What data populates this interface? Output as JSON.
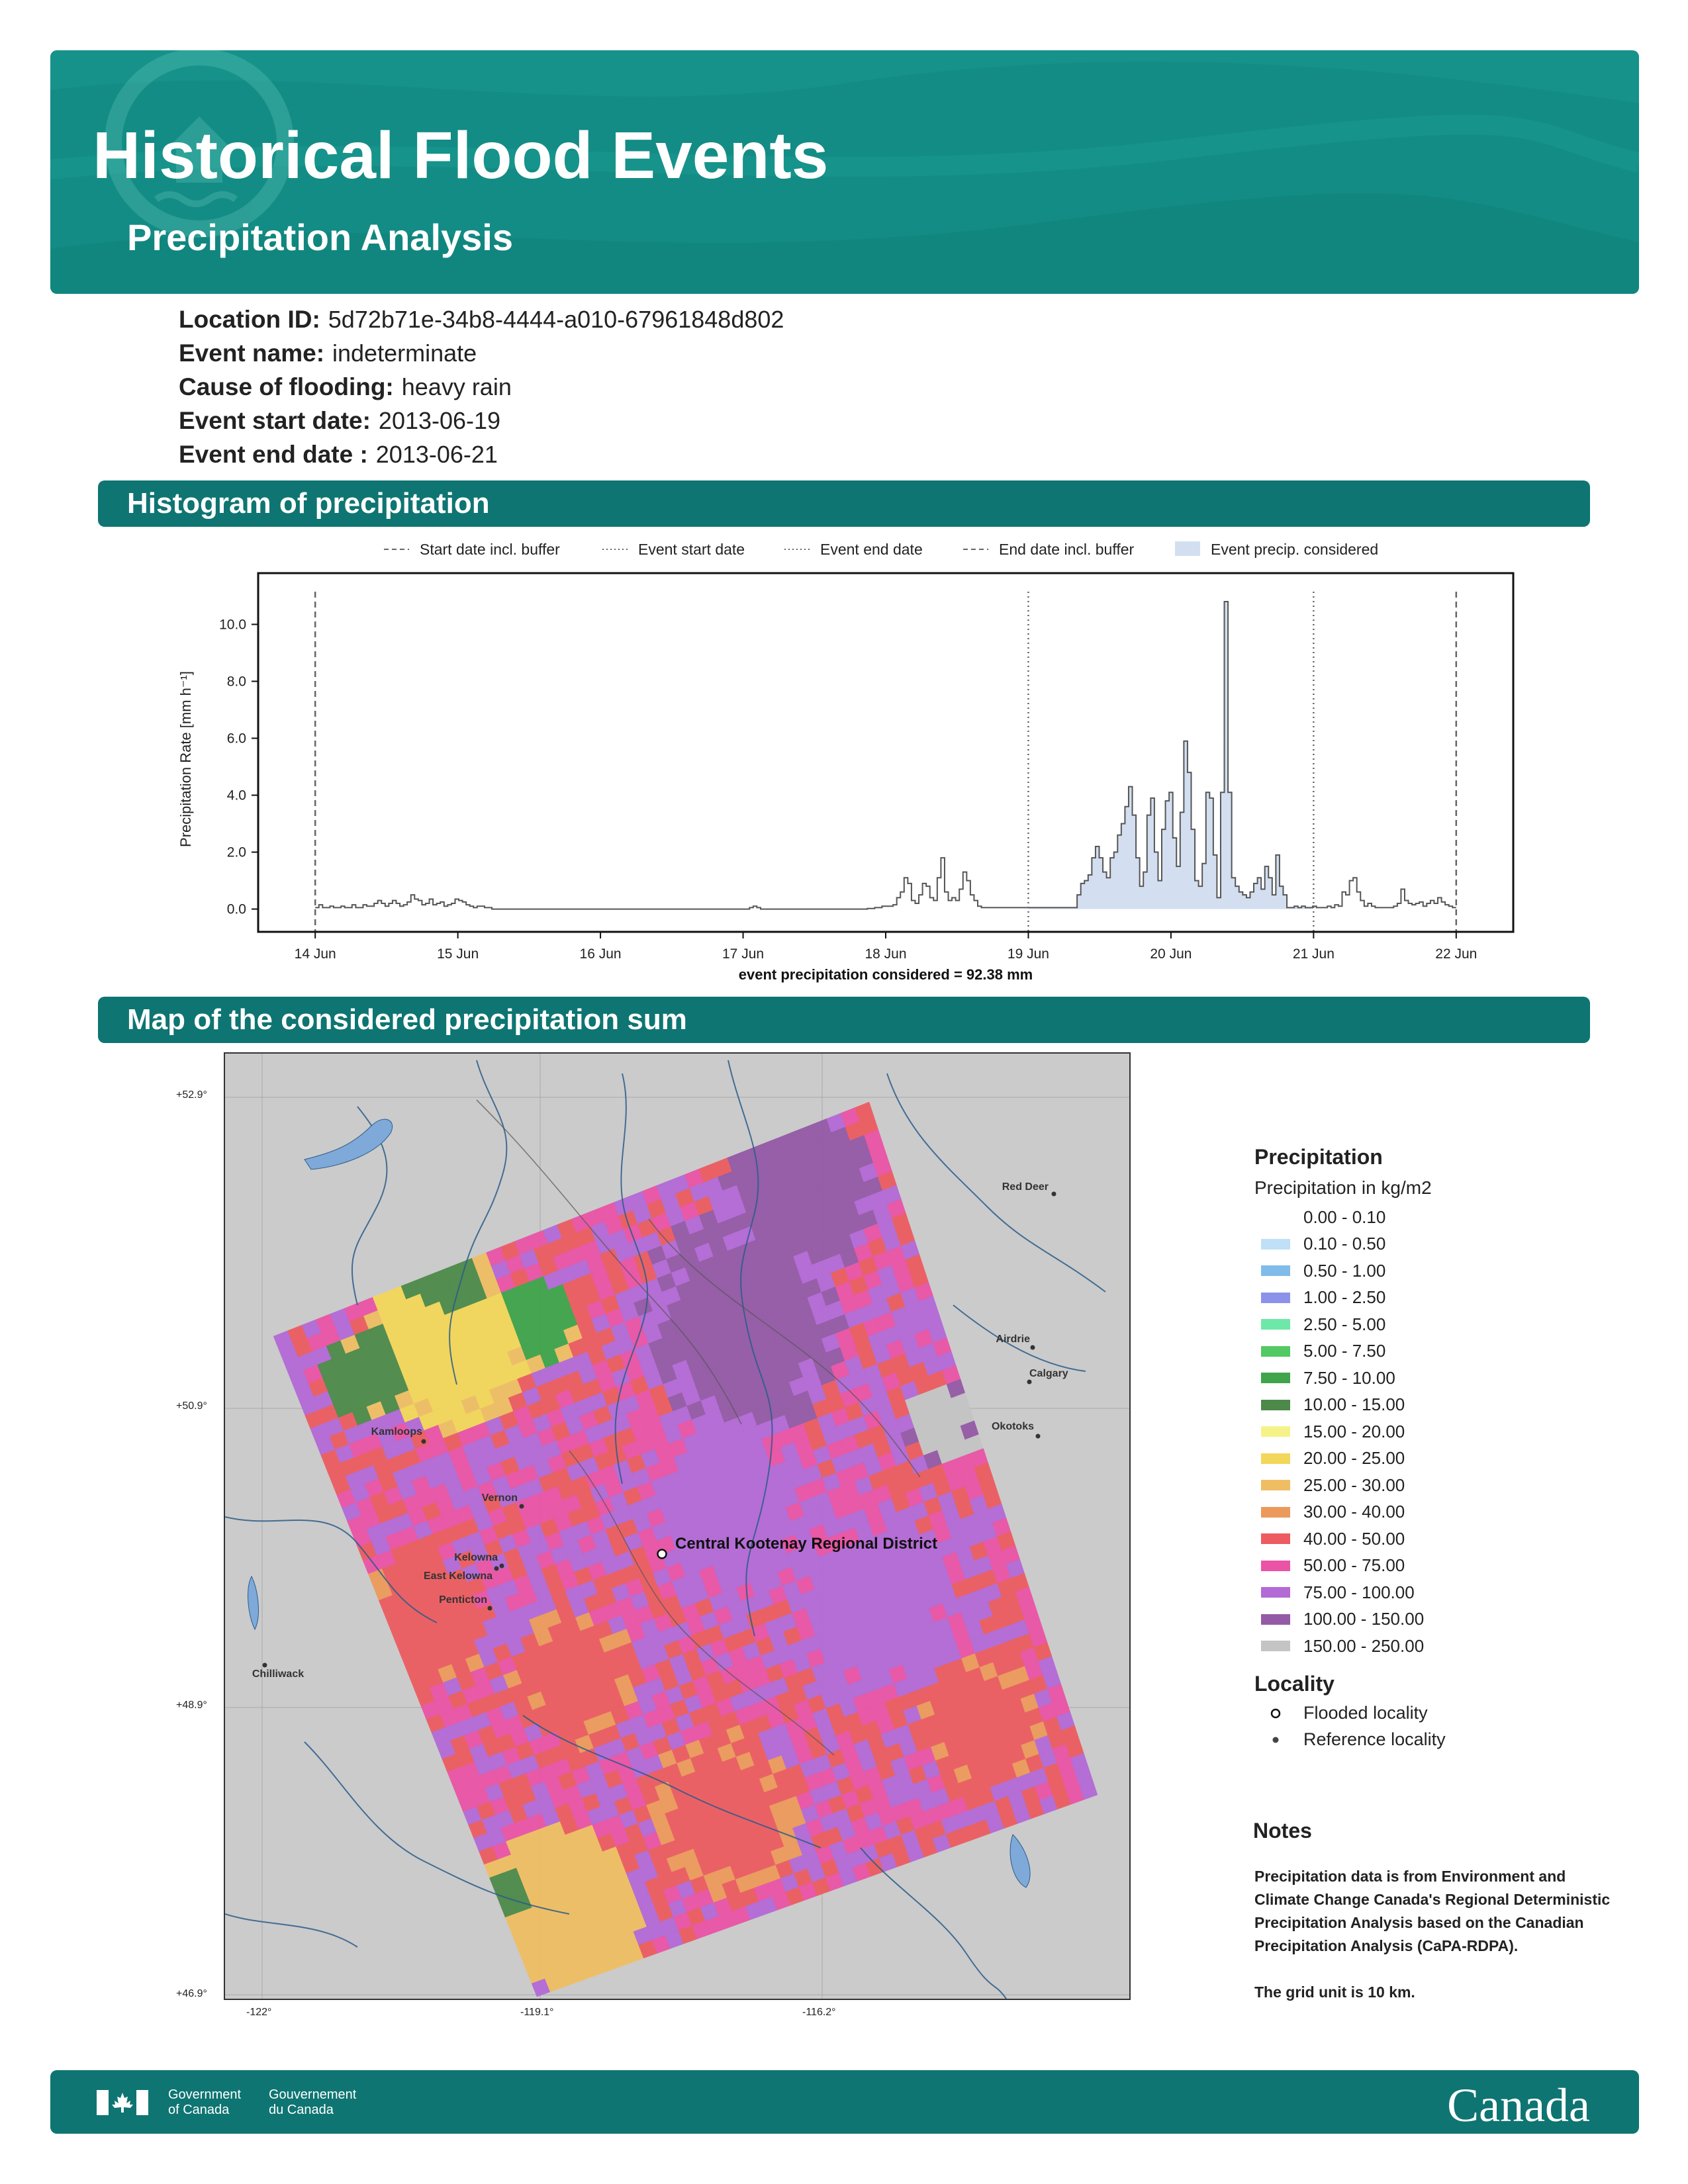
{
  "header": {
    "title": "Historical Flood Events",
    "subtitle": "Precipitation Analysis"
  },
  "info": {
    "location_id_label": "Location ID:",
    "location_id": "5d72b71e-34b8-4444-a010-67961848d802",
    "event_name_label": "Event name:",
    "event_name": "indeterminate",
    "cause_label": "Cause of flooding:",
    "cause": "heavy rain",
    "start_label": "Event start date:",
    "start_date": "2013-06-19",
    "end_label": "Event end date :",
    "end_date": "2013-06-21"
  },
  "sections": {
    "histogram": "Histogram of precipitation",
    "map": "Map of the considered precipitation sum"
  },
  "chart_data": {
    "type": "area",
    "ylabel": "Precipitation Rate [mm h⁻¹]",
    "xlabel": "event precipitation considered = 92.38 mm",
    "ylim": [
      -0.8,
      11.8
    ],
    "yticks": [
      "0.0",
      "2.0",
      "4.0",
      "6.0",
      "8.0",
      "10.0"
    ],
    "xticks": [
      "14 Jun",
      "15 Jun",
      "16 Jun",
      "17 Jun",
      "18 Jun",
      "19 Jun",
      "20 Jun",
      "21 Jun",
      "22 Jun"
    ],
    "xlim_days": [
      -0.4,
      8.4
    ],
    "legend_position": "top",
    "legend": [
      {
        "label": "Start date incl. buffer",
        "style": "dashed"
      },
      {
        "label": "Event start date",
        "style": "dotted"
      },
      {
        "label": "Event end date",
        "style": "dotted"
      },
      {
        "label": "End date incl. buffer",
        "style": "dashed"
      },
      {
        "label": "Event precip. considered",
        "style": "fill"
      }
    ],
    "vlines_days": [
      0,
      5,
      7,
      8
    ],
    "vline_styles": [
      "dashed",
      "dotted",
      "dotted",
      "dashed"
    ],
    "event_range_days": [
      5,
      7
    ],
    "series": [
      {
        "values": [
          0.05,
          0.15,
          0.05,
          0.05,
          0.1,
          0.05,
          0.05,
          0.1,
          0.05,
          0.05,
          0.15,
          0.05,
          0.05,
          0.15,
          0.1,
          0.1,
          0.2,
          0.3,
          0.2,
          0.1,
          0.2,
          0.3,
          0.2,
          0.1,
          0.15,
          0.25,
          0.5,
          0.35,
          0.3,
          0.15,
          0.2,
          0.35,
          0.15,
          0.2,
          0.25,
          0.1,
          0.15,
          0.2,
          0.35,
          0.3,
          0.25,
          0.15,
          0.1,
          0.05,
          0.1,
          0.1,
          0.05,
          0.05,
          0,
          0,
          0,
          0,
          0,
          0,
          0,
          0,
          0,
          0,
          0,
          0,
          0,
          0,
          0,
          0,
          0,
          0,
          0,
          0,
          0,
          0,
          0,
          0,
          0,
          0,
          0,
          0,
          0,
          0,
          0,
          0,
          0,
          0,
          0,
          0,
          0,
          0,
          0,
          0,
          0,
          0,
          0,
          0,
          0,
          0,
          0,
          0,
          0,
          0,
          0,
          0,
          0,
          0,
          0,
          0,
          0,
          0,
          0,
          0,
          0,
          0,
          0,
          0,
          0,
          0,
          0,
          0,
          0,
          0,
          0.05,
          0.1,
          0.05,
          0,
          0,
          0,
          0,
          0,
          0,
          0,
          0,
          0,
          0,
          0,
          0,
          0,
          0,
          0,
          0,
          0,
          0,
          0,
          0,
          0,
          0,
          0,
          0,
          0,
          0,
          0,
          0,
          0,
          0.02,
          0.02,
          0.05,
          0.05,
          0.1,
          0.1,
          0.1,
          0.15,
          0.4,
          0.6,
          1.1,
          0.9,
          0.3,
          0.2,
          0.5,
          0.9,
          0.8,
          0.4,
          0.3,
          1.1,
          1.8,
          0.6,
          0.3,
          0.4,
          0.3,
          0.7,
          1.3,
          1.0,
          0.5,
          0.3,
          0.1,
          0.05,
          0.05,
          0.05,
          0.05,
          0.05,
          0.05,
          0.05,
          0.05,
          0.05,
          0.05,
          0.05,
          0.05,
          0.05,
          0.05,
          0.05,
          0.05,
          0.05,
          0.05,
          0.05,
          0.05,
          0.05,
          0.05,
          0.05,
          0.05,
          0.05,
          0.05,
          0.5,
          0.9,
          1.0,
          1.2,
          1.8,
          2.2,
          1.8,
          1.3,
          1.1,
          1.8,
          2.0,
          2.6,
          3.0,
          3.6,
          4.3,
          3.3,
          1.8,
          0.8,
          1.3,
          3.3,
          3.9,
          2.0,
          1.0,
          2.8,
          3.8,
          4.1,
          2.5,
          1.5,
          3.4,
          5.9,
          4.8,
          2.8,
          1.0,
          0.8,
          1.6,
          4.1,
          3.9,
          1.9,
          0.4,
          4.1,
          10.8,
          4.1,
          1.1,
          0.8,
          0.6,
          0.5,
          0.4,
          0.6,
          0.9,
          1.1,
          0.7,
          1.5,
          1.1,
          0.5,
          1.9,
          0.8,
          0.5,
          0.05,
          0.05,
          0.1,
          0.05,
          0.1,
          0.05,
          0.05,
          0.1,
          0.05,
          0.05,
          0.05,
          0.1,
          0.05,
          0.15,
          0.1,
          0.6,
          0.5,
          1.0,
          1.1,
          0.6,
          0.3,
          0.1,
          0.2,
          0.1,
          0.05,
          0.05,
          0.05,
          0.05,
          0.05,
          0.1,
          0.2,
          0.7,
          0.3,
          0.2,
          0.15,
          0.2,
          0.25,
          0.1,
          0.2,
          0.3,
          0.2,
          0.4,
          0.25,
          0.15,
          0.1,
          0.05
        ]
      }
    ]
  },
  "map": {
    "lat_labels": [
      "+52.9°",
      "+50.9°",
      "+48.9°",
      "+46.9°"
    ],
    "lon_labels": [
      "-122°",
      "-119.1°",
      "-116.2°"
    ],
    "flooded_locality": "Central Kootenay Regional District",
    "reference_localities": [
      "Red Deer",
      "Airdrie",
      "Calgary",
      "Okotoks",
      "Kamloops",
      "Vernon",
      "Kelowna",
      "East Kelowna",
      "Penticton",
      "Chilliwack"
    ]
  },
  "legend": {
    "title": "Precipitation",
    "subtitle": "Precipitation in kg/m2",
    "items": [
      {
        "label": "0.00 - 0.10",
        "color": "#ffffff"
      },
      {
        "label": "0.10 - 0.50",
        "color": "#bfe0f6"
      },
      {
        "label": "0.50 - 1.00",
        "color": "#7fbcea"
      },
      {
        "label": "1.00 - 2.50",
        "color": "#8c92ea"
      },
      {
        "label": "2.50 - 5.00",
        "color": "#6ee8a8"
      },
      {
        "label": "5.00 - 7.50",
        "color": "#52c962"
      },
      {
        "label": "7.50 - 10.00",
        "color": "#3fa44a"
      },
      {
        "label": "10.00 - 15.00",
        "color": "#4d8a4a"
      },
      {
        "label": "15.00 - 20.00",
        "color": "#f6f28a"
      },
      {
        "label": "20.00 - 25.00",
        "color": "#f2d75a"
      },
      {
        "label": "25.00 - 30.00",
        "color": "#efbe63"
      },
      {
        "label": "30.00 - 40.00",
        "color": "#ec9a5c"
      },
      {
        "label": "40.00 - 50.00",
        "color": "#ec5c60"
      },
      {
        "label": "50.00 - 75.00",
        "color": "#ea53a6"
      },
      {
        "label": "75.00 - 100.00",
        "color": "#b36ad6"
      },
      {
        "label": "100.00 - 150.00",
        "color": "#945aa6"
      },
      {
        "label": "150.00 - 250.00",
        "color": "#c4c4c4"
      }
    ],
    "locality_title": "Locality",
    "flooded_label": "Flooded locality",
    "reference_label": "Reference locality"
  },
  "notes": {
    "title": "Notes",
    "text1": "Precipitation data is from Environment and Climate Change Canada's Regional Deterministic Precipitation Analysis based on the Canadian Precipitation Analysis (CaPA-RDPA).",
    "text2": "The grid unit is 10 km."
  },
  "footer": {
    "gov_en_1": "Government",
    "gov_en_2": "of Canada",
    "gov_fr_1": "Gouvernement",
    "gov_fr_2": "du Canada",
    "wordmark": "Canada"
  },
  "colors": {
    "header": "#138c85",
    "section": "#0e7572",
    "event_fill": "#d3dff0",
    "map_bg": "#cbcbcb",
    "river": "#2a5c8a"
  }
}
